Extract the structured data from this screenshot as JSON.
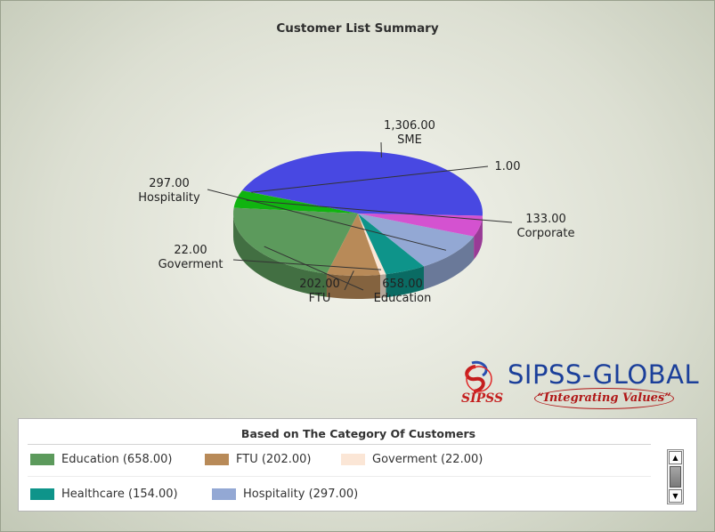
{
  "chart_data": {
    "type": "pie",
    "title": "Customer List Summary",
    "slices": [
      {
        "label": "SME",
        "value_text": "1,306.00",
        "value": 1306,
        "color": "#4848e2"
      },
      {
        "label": "",
        "value_text": "1.00",
        "value": 1,
        "color": "#9ccf2c"
      },
      {
        "label": "Corporate",
        "value_text": "133.00",
        "value": 133,
        "color": "#10b410"
      },
      {
        "label": "Education",
        "value_text": "658.00",
        "value": 658,
        "color": "#5c9a5c"
      },
      {
        "label": "FTU",
        "value_text": "202.00",
        "value": 202,
        "color": "#b88a58"
      },
      {
        "label": "Goverment",
        "value_text": "22.00",
        "value": 22,
        "color": "#fbe6d6"
      },
      {
        "label": "Healthcare",
        "value_text": "154.00",
        "value": 154,
        "color": "#0e948a"
      },
      {
        "label": "Hospitality",
        "value_text": "297.00",
        "value": 297,
        "color": "#93a8d4"
      },
      {
        "label": "",
        "value_text": "",
        "value": 160,
        "color": "#d452d0"
      }
    ],
    "legend_placement": "bottom",
    "legend_title": "Based on The Category Of Customers",
    "legend": [
      {
        "text": "Education (658.00)",
        "color": "#5c9a5c"
      },
      {
        "text": "FTU (202.00)",
        "color": "#b88a58"
      },
      {
        "text": "Goverment (22.00)",
        "color": "#fbe6d6"
      },
      {
        "text": "Healthcare (154.00)",
        "color": "#0e948a"
      },
      {
        "text": "Hospitality (297.00)",
        "color": "#93a8d4"
      }
    ]
  },
  "logo": {
    "name": "SIPSS-GLOBAL",
    "tagline": "“Integrating Values”",
    "mark_text": "SIPSS"
  },
  "scrollbar": {
    "up_icon": "▲",
    "down_icon": "▼"
  }
}
